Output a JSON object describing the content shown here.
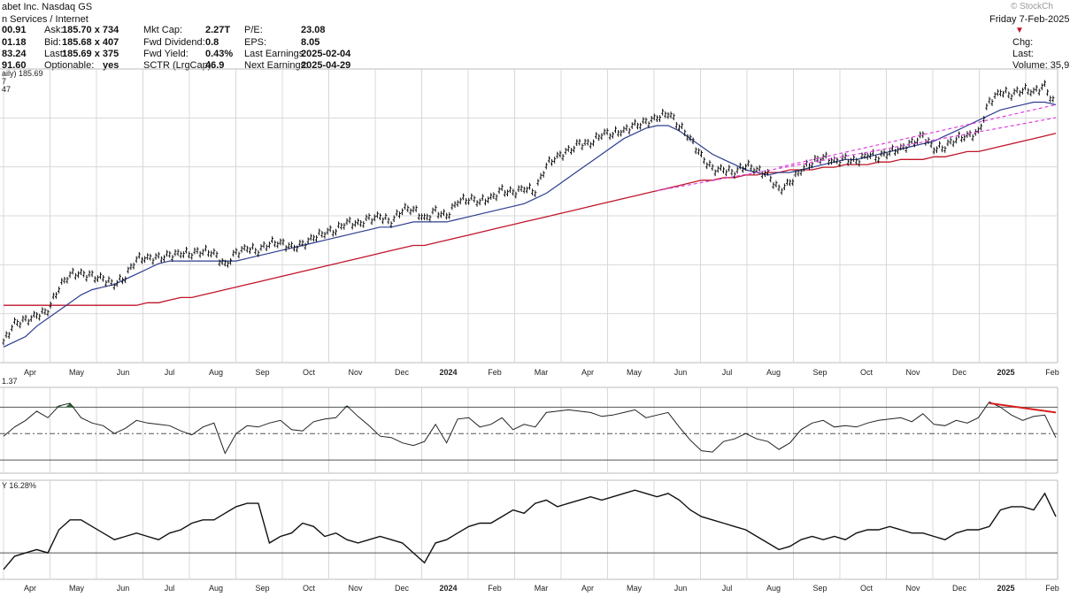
{
  "header": {
    "company": "abet Inc. Nasdaq GS",
    "watermark": "© StockCh",
    "sector": "n Services / Internet",
    "date": "Friday  7-Feb-2025",
    "left_values": [
      "00.91",
      "01.18",
      "83.24",
      "91.60"
    ],
    "quote": [
      {
        "label": "Ask:",
        "value": "185.70 x 734"
      },
      {
        "label": "Bid:",
        "value": "185.68 x 407"
      },
      {
        "label": "Last:",
        "value": "185.69 x 375"
      },
      {
        "label": "Optionable:",
        "value": "yes"
      }
    ],
    "fundamentals": [
      {
        "label": "Mkt Cap:",
        "value": "2.27T"
      },
      {
        "label": "Fwd Dividend:",
        "value": "0.8"
      },
      {
        "label": "Fwd Yield:",
        "value": "0.43%"
      },
      {
        "label": "SCTR (LrgCap):",
        "value": "46.9"
      }
    ],
    "earnings": [
      {
        "label": "P/E:",
        "value": "23.08"
      },
      {
        "label": "EPS:",
        "value": "8.05"
      },
      {
        "label": "Last Earnings:",
        "value": "2025-02-04"
      },
      {
        "label": "Next Earnings:",
        "value": "2025-04-29"
      }
    ],
    "right_labels": [
      "Chg:",
      "Last:",
      "Volume: 35,9"
    ]
  },
  "colors": {
    "price": "#111111",
    "ma_50": "#2e3d8f",
    "ma_200": "#c0142a",
    "trendline": "#e040e0",
    "divergence": "#d81e1e",
    "rsi_overbought_fill": "#2e6b3a",
    "rsi_oversold_fill": "#c0142a",
    "grid": "#d8d8d8"
  },
  "chart_data": [
    {
      "type": "line",
      "panel": "price",
      "title": "aily) 185.69",
      "legend": [
        "7",
        "47"
      ],
      "x_axis": [
        "Apr",
        "May",
        "Jun",
        "Jul",
        "Aug",
        "Sep",
        "Oct",
        "Nov",
        "Dec",
        "2024",
        "Feb",
        "Mar",
        "Apr",
        "May",
        "Jun",
        "Jul",
        "Aug",
        "Sep",
        "Oct",
        "Nov",
        "Dec",
        "2025",
        "Feb"
      ],
      "grid": true,
      "price_style": "ohlc-bars",
      "series": [
        {
          "role": "price",
          "style": "ohlc",
          "values": [
            97,
            104,
            105,
            107,
            109,
            118,
            123,
            123,
            122,
            121,
            119,
            122,
            129,
            129,
            129,
            130,
            131,
            131,
            132,
            131,
            126,
            131,
            133,
            132,
            135,
            135,
            133,
            134,
            137,
            139,
            140,
            143,
            142,
            144,
            145,
            143,
            148,
            148,
            144,
            147,
            145,
            151,
            152,
            151,
            152,
            155,
            154,
            156,
            155,
            165,
            168,
            170,
            173,
            173,
            177,
            177,
            178,
            180,
            181,
            183,
            185,
            180,
            175,
            168,
            163,
            163,
            162,
            165,
            163,
            161,
            155,
            158,
            163,
            166,
            168,
            166,
            167,
            166,
            169,
            168,
            170,
            171,
            173,
            176,
            171,
            172,
            175,
            176,
            177,
            189,
            193,
            192,
            194,
            193,
            195,
            187
          ]
        },
        {
          "role": "ma_50",
          "values": [
            95,
            97,
            99,
            103,
            106,
            109,
            112,
            115,
            117,
            118,
            119,
            121,
            123,
            125,
            127,
            128,
            128,
            128,
            128,
            128,
            128,
            128,
            129,
            130,
            131,
            132,
            133,
            134,
            135,
            136,
            137,
            138,
            139,
            140,
            141,
            141,
            142,
            143,
            143,
            143,
            143,
            144,
            145,
            146,
            147,
            148,
            149,
            150,
            152,
            154,
            157,
            160,
            163,
            166,
            169,
            172,
            175,
            177,
            179,
            180,
            180,
            178,
            175,
            172,
            169,
            167,
            165,
            163,
            162,
            161,
            162,
            162,
            163,
            164,
            165,
            166,
            167,
            167,
            168,
            169,
            170,
            171,
            172,
            173,
            174,
            176,
            178,
            180,
            182,
            184,
            186,
            187,
            188,
            189,
            189,
            188
          ]
        },
        {
          "role": "ma_200",
          "values": [
            111,
            111,
            111,
            111,
            111,
            111,
            111,
            111,
            111,
            111,
            111,
            111,
            111,
            112,
            112,
            113,
            114,
            114,
            115,
            116,
            117,
            118,
            119,
            120,
            121,
            122,
            123,
            124,
            125,
            126,
            127,
            128,
            129,
            130,
            131,
            132,
            133,
            134,
            134,
            135,
            136,
            137,
            138,
            139,
            140,
            141,
            142,
            143,
            144,
            145,
            146,
            147,
            148,
            149,
            150,
            151,
            152,
            153,
            154,
            155,
            156,
            157,
            158,
            159,
            159,
            160,
            160,
            161,
            161,
            162,
            162,
            163,
            163,
            163,
            164,
            164,
            165,
            165,
            165,
            166,
            166,
            167,
            167,
            167,
            168,
            168,
            169,
            170,
            170,
            171,
            172,
            173,
            174,
            175,
            176,
            177
          ]
        }
      ],
      "annotations": [
        {
          "type": "trendline",
          "from": [
            59,
            155
          ],
          "to": [
            95,
            183
          ]
        },
        {
          "type": "trendline",
          "from": [
            59,
            155
          ],
          "to": [
            95,
            183
          ],
          "note": "parallel dashed support"
        }
      ]
    },
    {
      "type": "line",
      "panel": "rsi",
      "title": "1.37",
      "x_axis": [
        "Apr",
        "May",
        "Jun",
        "Jul",
        "Aug",
        "Sep",
        "Oct",
        "Nov",
        "Dec",
        "2024",
        "Feb",
        "Mar",
        "Apr",
        "May",
        "Jun",
        "Jul",
        "Aug",
        "Sep",
        "Oct",
        "Nov",
        "Dec",
        "2025",
        "Feb"
      ],
      "ylim": [
        20,
        85
      ],
      "reference_lines": [
        70,
        50,
        30
      ],
      "series": [
        {
          "values": [
            48,
            55,
            60,
            67,
            62,
            71,
            73,
            62,
            58,
            56,
            50,
            54,
            60,
            58,
            57,
            56,
            52,
            49,
            55,
            58,
            35,
            50,
            56,
            55,
            58,
            60,
            53,
            52,
            59,
            61,
            62,
            71,
            63,
            56,
            48,
            47,
            43,
            41,
            44,
            57,
            43,
            61,
            62,
            55,
            57,
            62,
            53,
            57,
            55,
            66,
            67,
            68,
            67,
            66,
            63,
            64,
            66,
            68,
            62,
            64,
            66,
            55,
            45,
            37,
            36,
            44,
            46,
            50,
            46,
            44,
            38,
            43,
            53,
            58,
            60,
            55,
            56,
            55,
            58,
            60,
            61,
            62,
            59,
            65,
            57,
            56,
            60,
            58,
            62,
            74,
            70,
            64,
            60,
            63,
            64,
            47
          ]
        }
      ],
      "annotations": [
        {
          "type": "bearish_divergence",
          "from_x": 89,
          "to_x": 95,
          "from_y": 73,
          "to_y": 66
        }
      ]
    },
    {
      "type": "line",
      "panel": "relative_strength",
      "title": "Y 16.28%",
      "x_axis": [
        "Apr",
        "May",
        "Jun",
        "Jul",
        "Aug",
        "Sep",
        "Oct",
        "Nov",
        "Dec",
        "2024",
        "Feb",
        "Mar",
        "Apr",
        "May",
        "Jun",
        "Jul",
        "Aug",
        "Sep",
        "Oct",
        "Nov",
        "Dec",
        "2025",
        "Feb"
      ],
      "ylim": [
        -8,
        22
      ],
      "reference_lines": [
        0
      ],
      "series": [
        {
          "values": [
            -5,
            -1,
            0,
            1,
            0,
            7,
            10,
            10,
            8,
            6,
            4,
            5,
            6,
            5,
            4,
            6,
            7,
            9,
            10,
            10,
            12,
            14,
            15,
            15,
            3,
            5,
            6,
            9,
            8,
            5,
            6,
            4,
            3,
            4,
            5,
            4,
            3,
            0,
            -3,
            3,
            4,
            6,
            8,
            9,
            9,
            11,
            13,
            12,
            15,
            16,
            14,
            15,
            16,
            17,
            16,
            17,
            18,
            19,
            18,
            17,
            18,
            16,
            13,
            11,
            10,
            9,
            8,
            7,
            5,
            3,
            1,
            2,
            4,
            5,
            4,
            5,
            4,
            6,
            7,
            7,
            8,
            7,
            6,
            6,
            5,
            4,
            6,
            7,
            7,
            8,
            13,
            14,
            14,
            13,
            18,
            11
          ]
        }
      ]
    }
  ]
}
